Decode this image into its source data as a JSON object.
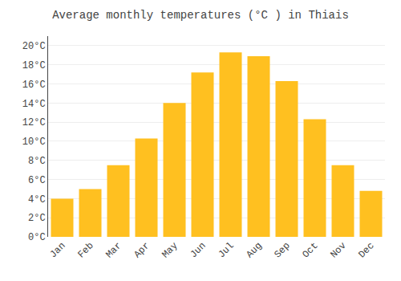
{
  "chart_data": {
    "type": "bar",
    "title": "Average monthly temperatures (°C ) in Thiais",
    "categories": [
      "Jan",
      "Feb",
      "Mar",
      "Apr",
      "May",
      "Jun",
      "Jul",
      "Aug",
      "Sep",
      "Oct",
      "Nov",
      "Dec"
    ],
    "values": [
      4.0,
      5.0,
      7.5,
      10.3,
      14.0,
      17.2,
      19.3,
      18.9,
      16.3,
      12.3,
      7.5,
      4.8
    ],
    "color": "#FFC020",
    "ylim": [
      0,
      21
    ],
    "yticks": [
      {
        "value": 0,
        "label": "0°C"
      },
      {
        "value": 2,
        "label": "2°C"
      },
      {
        "value": 4,
        "label": "4°C"
      },
      {
        "value": 6,
        "label": "6°C"
      },
      {
        "value": 8,
        "label": "8°C"
      },
      {
        "value": 10,
        "label": "10°C"
      },
      {
        "value": 12,
        "label": "12°C"
      },
      {
        "value": 14,
        "label": "14°C"
      },
      {
        "value": 16,
        "label": "16°C"
      },
      {
        "value": 18,
        "label": "18°C"
      },
      {
        "value": 20,
        "label": "20°C"
      }
    ],
    "grid": true
  }
}
